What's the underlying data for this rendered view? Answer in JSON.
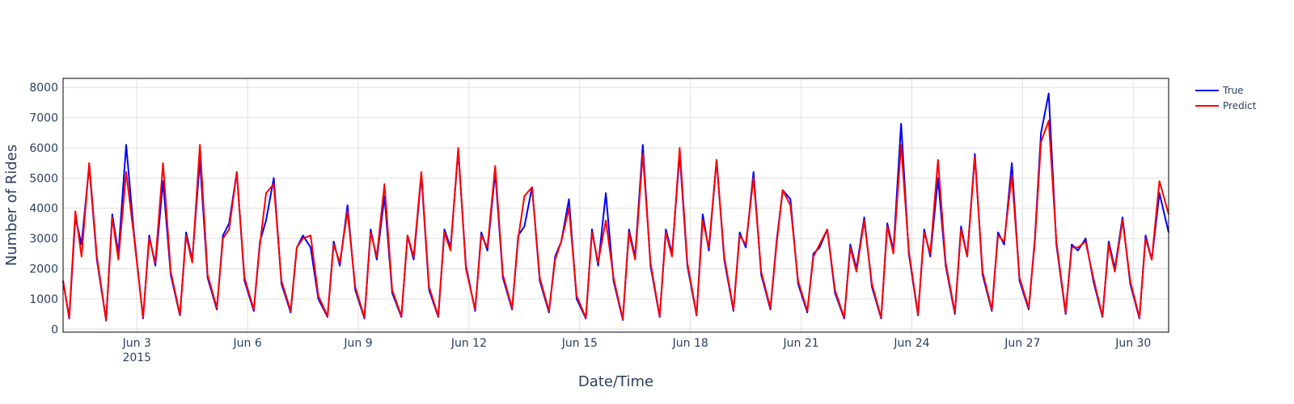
{
  "chart_data": {
    "type": "line",
    "title": "",
    "xlabel": "Date/Time",
    "ylabel": "Number of Rides",
    "xlim": [
      "2015-06-01T00:00",
      "2015-06-30T23:00"
    ],
    "ylim": [
      -100,
      8300
    ],
    "grid": true,
    "legend_position": "top-right",
    "x_ticks": [
      {
        "value": "2015-06-03",
        "label": "Jun 3",
        "sublabel": "2015"
      },
      {
        "value": "2015-06-06",
        "label": "Jun 6",
        "sublabel": ""
      },
      {
        "value": "2015-06-09",
        "label": "Jun 9",
        "sublabel": ""
      },
      {
        "value": "2015-06-12",
        "label": "Jun 12",
        "sublabel": ""
      },
      {
        "value": "2015-06-15",
        "label": "Jun 15",
        "sublabel": ""
      },
      {
        "value": "2015-06-18",
        "label": "Jun 18",
        "sublabel": ""
      },
      {
        "value": "2015-06-21",
        "label": "Jun 21",
        "sublabel": ""
      },
      {
        "value": "2015-06-24",
        "label": "Jun 24",
        "sublabel": ""
      },
      {
        "value": "2015-06-27",
        "label": "Jun 27",
        "sublabel": ""
      },
      {
        "value": "2015-06-30",
        "label": "Jun 30",
        "sublabel": ""
      }
    ],
    "y_ticks": [
      0,
      1000,
      2000,
      3000,
      4000,
      5000,
      6000,
      7000,
      8000
    ],
    "x": [
      "2015-06-01T00:00",
      "2015-06-01T04:00",
      "2015-06-01T08:00",
      "2015-06-01T12:00",
      "2015-06-01T17:00",
      "2015-06-01T22:00",
      "2015-06-02T04:00",
      "2015-06-02T08:00",
      "2015-06-02T12:00",
      "2015-06-02T17:00",
      "2015-06-02T22:00",
      "2015-06-03T04:00",
      "2015-06-03T08:00",
      "2015-06-03T12:00",
      "2015-06-03T17:00",
      "2015-06-03T22:00",
      "2015-06-04T04:00",
      "2015-06-04T08:00",
      "2015-06-04T12:00",
      "2015-06-04T17:00",
      "2015-06-04T22:00",
      "2015-06-05T04:00",
      "2015-06-05T08:00",
      "2015-06-05T12:00",
      "2015-06-05T17:00",
      "2015-06-05T22:00",
      "2015-06-06T04:00",
      "2015-06-06T08:00",
      "2015-06-06T12:00",
      "2015-06-06T17:00",
      "2015-06-06T22:00",
      "2015-06-07T04:00",
      "2015-06-07T08:00",
      "2015-06-07T12:00",
      "2015-06-07T17:00",
      "2015-06-07T22:00",
      "2015-06-08T04:00",
      "2015-06-08T08:00",
      "2015-06-08T12:00",
      "2015-06-08T17:00",
      "2015-06-08T22:00",
      "2015-06-09T04:00",
      "2015-06-09T08:00",
      "2015-06-09T12:00",
      "2015-06-09T17:00",
      "2015-06-09T22:00",
      "2015-06-10T04:00",
      "2015-06-10T08:00",
      "2015-06-10T12:00",
      "2015-06-10T17:00",
      "2015-06-10T22:00",
      "2015-06-11T04:00",
      "2015-06-11T08:00",
      "2015-06-11T12:00",
      "2015-06-11T17:00",
      "2015-06-11T22:00",
      "2015-06-12T04:00",
      "2015-06-12T08:00",
      "2015-06-12T12:00",
      "2015-06-12T17:00",
      "2015-06-12T22:00",
      "2015-06-13T04:00",
      "2015-06-13T08:00",
      "2015-06-13T12:00",
      "2015-06-13T17:00",
      "2015-06-13T22:00",
      "2015-06-14T04:00",
      "2015-06-14T08:00",
      "2015-06-14T12:00",
      "2015-06-14T17:00",
      "2015-06-14T22:00",
      "2015-06-15T04:00",
      "2015-06-15T08:00",
      "2015-06-15T12:00",
      "2015-06-15T17:00",
      "2015-06-15T22:00",
      "2015-06-16T04:00",
      "2015-06-16T08:00",
      "2015-06-16T12:00",
      "2015-06-16T17:00",
      "2015-06-16T22:00",
      "2015-06-17T04:00",
      "2015-06-17T08:00",
      "2015-06-17T12:00",
      "2015-06-17T17:00",
      "2015-06-17T22:00",
      "2015-06-18T04:00",
      "2015-06-18T08:00",
      "2015-06-18T12:00",
      "2015-06-18T17:00",
      "2015-06-18T22:00",
      "2015-06-19T04:00",
      "2015-06-19T08:00",
      "2015-06-19T12:00",
      "2015-06-19T17:00",
      "2015-06-19T22:00",
      "2015-06-20T04:00",
      "2015-06-20T08:00",
      "2015-06-20T12:00",
      "2015-06-20T17:00",
      "2015-06-20T22:00",
      "2015-06-21T04:00",
      "2015-06-21T08:00",
      "2015-06-21T12:00",
      "2015-06-21T17:00",
      "2015-06-21T22:00",
      "2015-06-22T04:00",
      "2015-06-22T08:00",
      "2015-06-22T12:00",
      "2015-06-22T17:00",
      "2015-06-22T22:00",
      "2015-06-23T04:00",
      "2015-06-23T08:00",
      "2015-06-23T12:00",
      "2015-06-23T17:00",
      "2015-06-23T22:00",
      "2015-06-24T04:00",
      "2015-06-24T08:00",
      "2015-06-24T12:00",
      "2015-06-24T17:00",
      "2015-06-24T22:00",
      "2015-06-25T04:00",
      "2015-06-25T08:00",
      "2015-06-25T12:00",
      "2015-06-25T17:00",
      "2015-06-25T22:00",
      "2015-06-26T04:00",
      "2015-06-26T08:00",
      "2015-06-26T12:00",
      "2015-06-26T17:00",
      "2015-06-26T22:00",
      "2015-06-27T04:00",
      "2015-06-27T08:00",
      "2015-06-27T12:00",
      "2015-06-27T17:00",
      "2015-06-27T22:00",
      "2015-06-28T04:00",
      "2015-06-28T08:00",
      "2015-06-28T12:00",
      "2015-06-28T17:00",
      "2015-06-28T22:00",
      "2015-06-29T04:00",
      "2015-06-29T08:00",
      "2015-06-29T12:00",
      "2015-06-29T17:00",
      "2015-06-29T22:00",
      "2015-06-30T04:00",
      "2015-06-30T08:00",
      "2015-06-30T12:00",
      "2015-06-30T17:00",
      "2015-06-30T23:00"
    ],
    "series": [
      {
        "name": "True",
        "color": "#0000ff",
        "values": [
          1600,
          350,
          3700,
          2800,
          5400,
          2300,
          280,
          3800,
          2500,
          6100,
          3200,
          350,
          3100,
          2100,
          4900,
          1800,
          450,
          3200,
          2300,
          5600,
          1700,
          650,
          3100,
          3500,
          5200,
          1600,
          600,
          2900,
          3600,
          5000,
          1500,
          550,
          2700,
          3100,
          2700,
          1000,
          400,
          2900,
          2100,
          4100,
          1300,
          350,
          3300,
          2300,
          4400,
          1200,
          400,
          3100,
          2300,
          5100,
          1300,
          400,
          3300,
          2700,
          5900,
          2100,
          600,
          3200,
          2600,
          5200,
          1700,
          650,
          3100,
          3400,
          4700,
          1600,
          550,
          2400,
          2900,
          4300,
          1000,
          350,
          3300,
          2100,
          4500,
          1600,
          300,
          3300,
          2400,
          6100,
          2100,
          400,
          3300,
          2500,
          5800,
          2100,
          450,
          3800,
          2600,
          5600,
          2300,
          600,
          3200,
          2700,
          5200,
          1800,
          650,
          2900,
          4600,
          4300,
          1500,
          550,
          2500,
          2700,
          3300,
          1200,
          350,
          2800,
          2000,
          3700,
          1400,
          350,
          3500,
          2600,
          6800,
          2500,
          450,
          3300,
          2400,
          5000,
          2100,
          500,
          3400,
          2400,
          5800,
          1800,
          600,
          3200,
          2800,
          5500,
          1600,
          650,
          3000,
          6500,
          7800,
          2800,
          500,
          2800,
          2600,
          3000,
          1600,
          400,
          2900,
          2000,
          3700,
          1500,
          350,
          3100,
          2300,
          4500,
          3200
        ]
      },
      {
        "name": "Predict",
        "color": "#ff0000",
        "values": [
          1600,
          380,
          3900,
          2400,
          5500,
          2400,
          300,
          3700,
          2300,
          5200,
          3100,
          380,
          3000,
          2200,
          5500,
          1900,
          480,
          3100,
          2200,
          6100,
          1800,
          700,
          3000,
          3300,
          5200,
          1700,
          650,
          2800,
          4500,
          4800,
          1600,
          600,
          2700,
          3000,
          3100,
          1100,
          430,
          2800,
          2200,
          3900,
          1400,
          380,
          3200,
          2400,
          4800,
          1300,
          430,
          3100,
          2400,
          5200,
          1400,
          430,
          3200,
          2600,
          6000,
          2000,
          650,
          3100,
          2700,
          5400,
          1800,
          700,
          3000,
          4400,
          4700,
          1700,
          600,
          2300,
          2900,
          4000,
          1100,
          380,
          3200,
          2200,
          3600,
          1700,
          330,
          3200,
          2300,
          5800,
          2200,
          430,
          3200,
          2400,
          6000,
          2200,
          480,
          3600,
          2700,
          5600,
          2400,
          650,
          3100,
          2800,
          5000,
          1900,
          700,
          2800,
          4600,
          4100,
          1600,
          600,
          2400,
          2800,
          3300,
          1300,
          380,
          2700,
          1900,
          3600,
          1500,
          380,
          3400,
          2500,
          6100,
          2600,
          480,
          3200,
          2500,
          5600,
          2200,
          550,
          3300,
          2400,
          5700,
          1900,
          650,
          3100,
          2900,
          5100,
          1700,
          700,
          2900,
          6200,
          6900,
          2900,
          550,
          2700,
          2700,
          2900,
          1700,
          430,
          2800,
          1900,
          3600,
          1600,
          380,
          3000,
          2300,
          4900,
          3800
        ]
      }
    ]
  }
}
